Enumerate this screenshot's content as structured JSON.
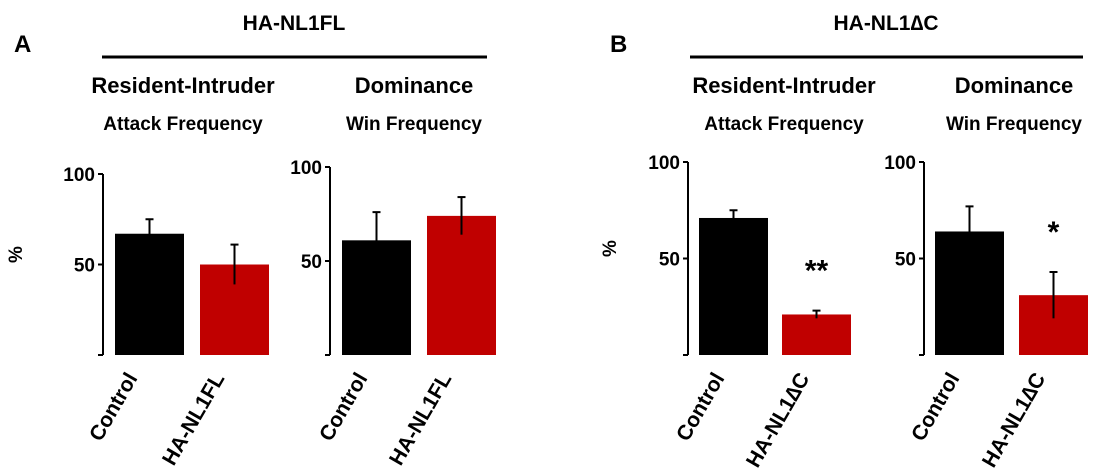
{
  "panels": [
    {
      "letter": "A",
      "construct": "HA-NL1FL",
      "charts": [
        {
          "assay": "Resident-Intruder",
          "metric": "Attack Frequency"
        },
        {
          "assay": "Dominance",
          "metric": "Win Frequency"
        }
      ]
    },
    {
      "letter": "B",
      "construct": "HA-NL1∆C",
      "charts": [
        {
          "assay": "Resident-Intruder",
          "metric": "Attack Frequency"
        },
        {
          "assay": "Dominance",
          "metric": "Win Frequency"
        }
      ]
    }
  ],
  "colors": {
    "control": "#000000",
    "treatment": "#c00000"
  },
  "chart_data": [
    {
      "type": "bar",
      "title": "Resident-Intruder",
      "subtitle": "Attack Frequency",
      "ylabel": "%",
      "ylim": [
        0,
        100
      ],
      "yticks": [
        50,
        100
      ],
      "categories": [
        "Control",
        "HA-NL1FL"
      ],
      "values": [
        67,
        50
      ],
      "errors": [
        8,
        11
      ],
      "colors": [
        "#000000",
        "#c00000"
      ],
      "significance": [
        "",
        ""
      ]
    },
    {
      "type": "bar",
      "title": "Dominance",
      "subtitle": "Win Frequency",
      "ylabel": "",
      "ylim": [
        0,
        100
      ],
      "yticks": [
        50,
        100
      ],
      "categories": [
        "Control",
        "HA-NL1FL"
      ],
      "values": [
        61,
        74
      ],
      "errors": [
        15,
        10
      ],
      "colors": [
        "#000000",
        "#c00000"
      ],
      "significance": [
        "",
        ""
      ]
    },
    {
      "type": "bar",
      "title": "Resident-Intruder",
      "subtitle": "Attack Frequency",
      "ylabel": "%",
      "ylim": [
        0,
        100
      ],
      "yticks": [
        50,
        100
      ],
      "categories": [
        "Control",
        "HA-NL1∆C"
      ],
      "values": [
        71,
        21
      ],
      "errors": [
        4,
        2
      ],
      "colors": [
        "#000000",
        "#c00000"
      ],
      "significance": [
        "",
        "**"
      ]
    },
    {
      "type": "bar",
      "title": "Dominance",
      "subtitle": "Win Frequency",
      "ylabel": "",
      "ylim": [
        0,
        100
      ],
      "yticks": [
        50,
        100
      ],
      "categories": [
        "Control",
        "HA-NL1∆C"
      ],
      "values": [
        64,
        31
      ],
      "errors": [
        13,
        12
      ],
      "colors": [
        "#000000",
        "#c00000"
      ],
      "significance": [
        "",
        "*"
      ]
    }
  ]
}
